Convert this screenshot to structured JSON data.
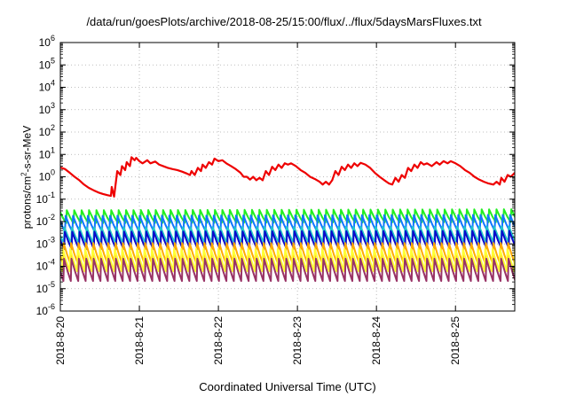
{
  "chart_data": {
    "type": "line",
    "title": "/data/run/goesPlots/archive/2018-08-25/15:00/flux/../flux/5daysMarsFluxes.txt",
    "xlabel": "Coordinated Universal Time (UTC)",
    "ylabel": "protons/cm²-s-sr-MeV",
    "ylabel_parts": {
      "pre": "protons/cm",
      "sup": "2",
      "post": "-s-sr-MeV"
    },
    "x_unit": "days since 2018-8-20 00:00",
    "xlim": [
      0,
      5.75
    ],
    "y_scale": "log",
    "ylim_exp": [
      -6,
      6
    ],
    "grid": true,
    "x_ticks": [
      {
        "x": 0,
        "label": "2018-8-20"
      },
      {
        "x": 1,
        "label": "2018-8-21"
      },
      {
        "x": 2,
        "label": "2018-8-22"
      },
      {
        "x": 3,
        "label": "2018-8-23"
      },
      {
        "x": 4,
        "label": "2018-8-24"
      },
      {
        "x": 5,
        "label": "2018-8-25"
      }
    ],
    "y_ticks": [
      -6,
      -5,
      -4,
      -3,
      -2,
      -1,
      0,
      1,
      2,
      3,
      4,
      5,
      6
    ],
    "series": [
      {
        "color": "#ee0000",
        "lw": 2.2,
        "points": [
          [
            0.0,
            2.6
          ],
          [
            0.06,
            2.2
          ],
          [
            0.12,
            1.5
          ],
          [
            0.18,
            1.0
          ],
          [
            0.24,
            0.7
          ],
          [
            0.3,
            0.45
          ],
          [
            0.36,
            0.32
          ],
          [
            0.42,
            0.25
          ],
          [
            0.48,
            0.2
          ],
          [
            0.54,
            0.17
          ],
          [
            0.6,
            0.15
          ],
          [
            0.64,
            0.14
          ],
          [
            0.65,
            0.35
          ],
          [
            0.68,
            0.13
          ],
          [
            0.72,
            1.8
          ],
          [
            0.76,
            1.2
          ],
          [
            0.78,
            3.0
          ],
          [
            0.82,
            2.0
          ],
          [
            0.84,
            4.5
          ],
          [
            0.88,
            3.0
          ],
          [
            0.9,
            7.5
          ],
          [
            0.94,
            5.5
          ],
          [
            0.96,
            7.0
          ],
          [
            1.0,
            5.0
          ],
          [
            1.04,
            4.0
          ],
          [
            1.1,
            5.5
          ],
          [
            1.14,
            4.0
          ],
          [
            1.2,
            4.8
          ],
          [
            1.25,
            3.5
          ],
          [
            1.3,
            3.0
          ],
          [
            1.36,
            2.5
          ],
          [
            1.42,
            2.2
          ],
          [
            1.48,
            2.0
          ],
          [
            1.54,
            1.7
          ],
          [
            1.6,
            1.4
          ],
          [
            1.64,
            1.2
          ],
          [
            1.66,
            1.8
          ],
          [
            1.7,
            1.2
          ],
          [
            1.74,
            2.5
          ],
          [
            1.78,
            1.8
          ],
          [
            1.8,
            3.5
          ],
          [
            1.84,
            2.5
          ],
          [
            1.88,
            4.5
          ],
          [
            1.92,
            3.5
          ],
          [
            1.95,
            6.5
          ],
          [
            2.0,
            5.0
          ],
          [
            2.05,
            5.5
          ],
          [
            2.1,
            4.0
          ],
          [
            2.16,
            3.0
          ],
          [
            2.22,
            2.2
          ],
          [
            2.28,
            1.5
          ],
          [
            2.32,
            1.0
          ],
          [
            2.36,
            1.0
          ],
          [
            2.4,
            0.75
          ],
          [
            2.44,
            1.0
          ],
          [
            2.48,
            0.7
          ],
          [
            2.52,
            0.9
          ],
          [
            2.56,
            0.7
          ],
          [
            2.6,
            1.8
          ],
          [
            2.64,
            1.2
          ],
          [
            2.68,
            2.8
          ],
          [
            2.72,
            2.0
          ],
          [
            2.76,
            3.5
          ],
          [
            2.8,
            2.5
          ],
          [
            2.84,
            4.0
          ],
          [
            2.88,
            3.5
          ],
          [
            2.92,
            4.0
          ],
          [
            2.98,
            3.0
          ],
          [
            3.04,
            2.0
          ],
          [
            3.1,
            1.5
          ],
          [
            3.16,
            1.0
          ],
          [
            3.22,
            0.8
          ],
          [
            3.28,
            0.6
          ],
          [
            3.32,
            0.45
          ],
          [
            3.36,
            0.6
          ],
          [
            3.4,
            0.45
          ],
          [
            3.44,
            0.7
          ],
          [
            3.48,
            1.8
          ],
          [
            3.52,
            1.2
          ],
          [
            3.56,
            2.8
          ],
          [
            3.6,
            2.0
          ],
          [
            3.64,
            3.5
          ],
          [
            3.68,
            2.5
          ],
          [
            3.72,
            4.0
          ],
          [
            3.76,
            3.0
          ],
          [
            3.8,
            4.2
          ],
          [
            3.86,
            3.5
          ],
          [
            3.92,
            2.5
          ],
          [
            3.98,
            1.5
          ],
          [
            4.04,
            1.0
          ],
          [
            4.1,
            0.7
          ],
          [
            4.16,
            0.5
          ],
          [
            4.2,
            0.45
          ],
          [
            4.24,
            0.9
          ],
          [
            4.28,
            0.6
          ],
          [
            4.32,
            1.2
          ],
          [
            4.36,
            0.9
          ],
          [
            4.4,
            2.5
          ],
          [
            4.44,
            1.8
          ],
          [
            4.48,
            3.5
          ],
          [
            4.52,
            2.5
          ],
          [
            4.56,
            4.5
          ],
          [
            4.6,
            3.5
          ],
          [
            4.64,
            4.0
          ],
          [
            4.7,
            3.0
          ],
          [
            4.76,
            4.5
          ],
          [
            4.8,
            3.5
          ],
          [
            4.85,
            5.0
          ],
          [
            4.9,
            4.0
          ],
          [
            4.94,
            5.0
          ],
          [
            5.0,
            4.0
          ],
          [
            5.06,
            3.0
          ],
          [
            5.12,
            2.0
          ],
          [
            5.18,
            1.5
          ],
          [
            5.24,
            1.0
          ],
          [
            5.3,
            0.75
          ],
          [
            5.36,
            0.6
          ],
          [
            5.42,
            0.5
          ],
          [
            5.48,
            0.45
          ],
          [
            5.52,
            0.6
          ],
          [
            5.56,
            0.45
          ],
          [
            5.58,
            0.9
          ],
          [
            5.62,
            0.6
          ],
          [
            5.66,
            1.2
          ],
          [
            5.7,
            1.0
          ],
          [
            5.75,
            1.5
          ]
        ]
      },
      {
        "color": "#22ee22",
        "lw": 2.0,
        "profile": "sawtooth",
        "period": 0.09375,
        "phase": 0.02,
        "low": 0.0085,
        "high": 0.032,
        "trend": 0.1
      },
      {
        "color": "#1177ff",
        "lw": 2.0,
        "profile": "sawtooth",
        "period": 0.09375,
        "phase": 0.035,
        "low": 0.0035,
        "high": 0.018,
        "trend": 0.1
      },
      {
        "color": "#22c8c8",
        "lw": 2.0,
        "profile": "sawtooth",
        "period": 0.09375,
        "phase": 0.05,
        "low": 0.0011,
        "high": 0.0055,
        "trend": 0.1
      },
      {
        "color": "#0a0acc",
        "lw": 2.0,
        "profile": "sawtooth",
        "period": 0.09375,
        "phase": 0.045,
        "low": 0.0006,
        "high": 0.0035,
        "trend": 0.1
      },
      {
        "color": "#ffaa00",
        "lw": 2.0,
        "profile": "sawtooth",
        "period": 0.09375,
        "phase": 0.06,
        "low": 0.00013,
        "high": 0.0011,
        "trend": 0.0
      },
      {
        "color": "#ffff33",
        "lw": 2.0,
        "profile": "sawtooth",
        "period": 0.09375,
        "phase": 0.07,
        "low": 6e-05,
        "high": 0.0006,
        "trend": 0.0
      },
      {
        "color": "#993366",
        "lw": 2.0,
        "profile": "sawtooth",
        "period": 0.09375,
        "phase": 0.055,
        "low": 2.2e-05,
        "high": 0.00022,
        "trend": 0.0
      }
    ]
  }
}
